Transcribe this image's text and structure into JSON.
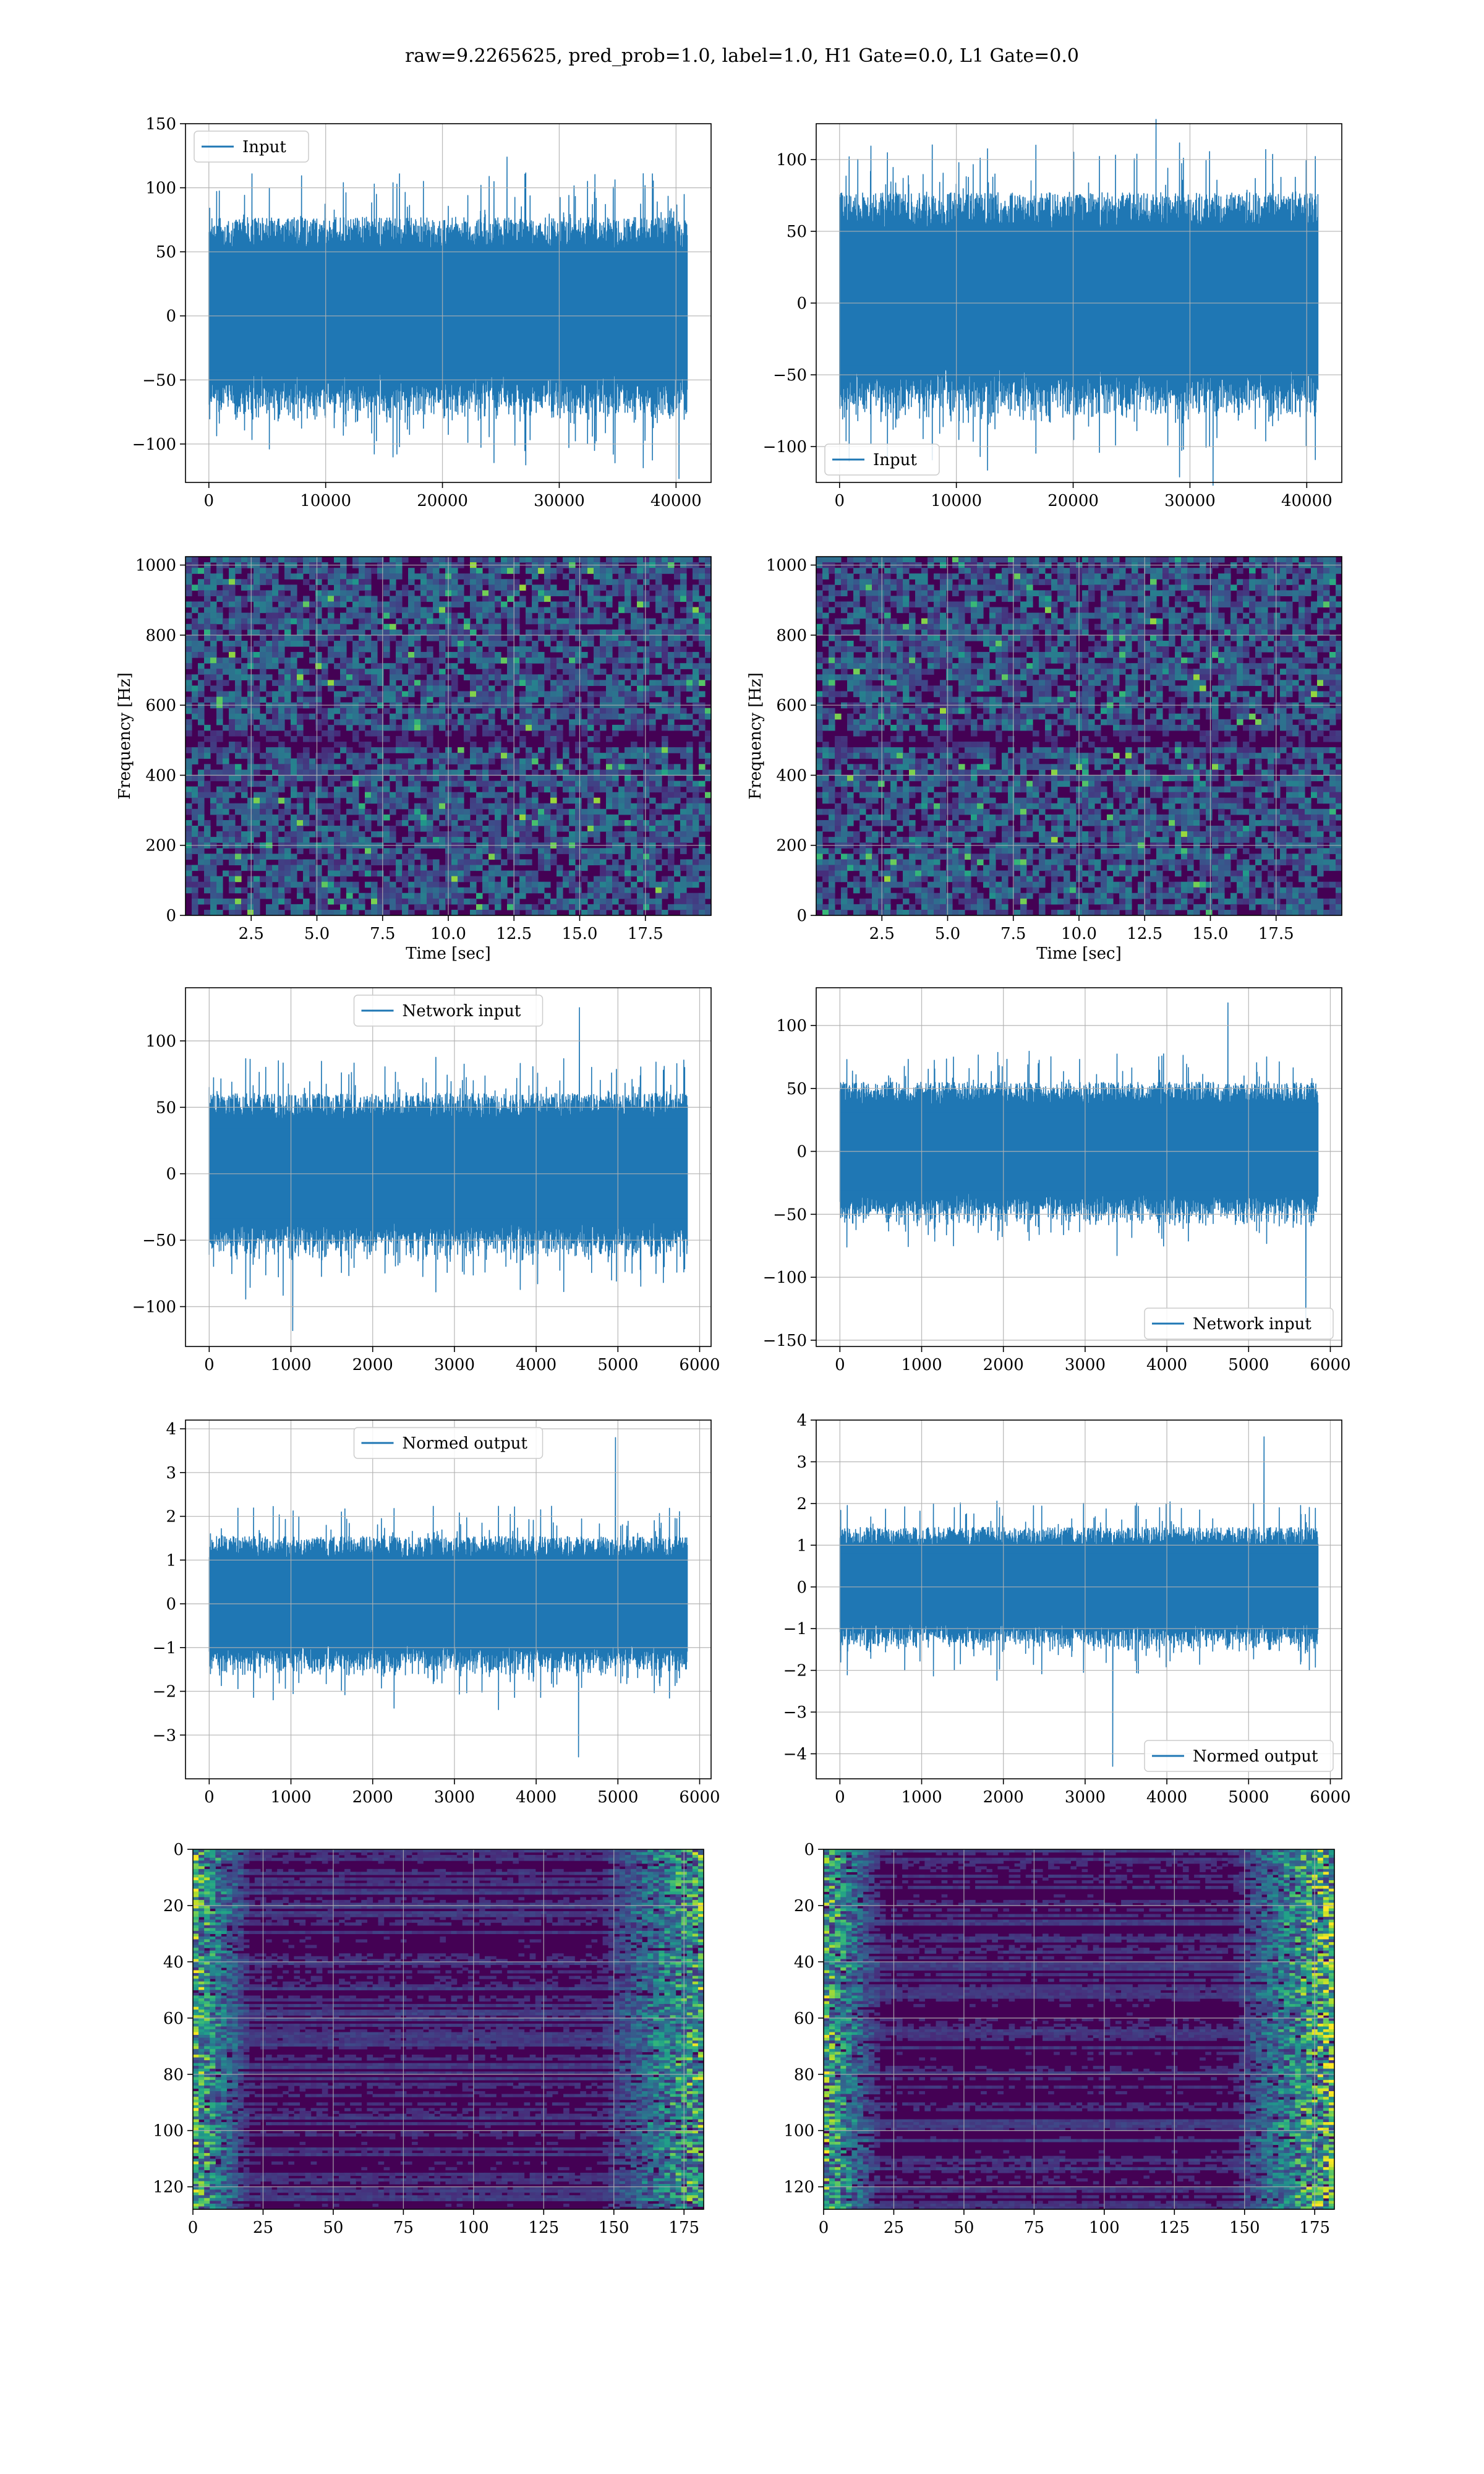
{
  "suptitle": "raw=9.2265625, pred_prob=1.0, label=1.0, H1 Gate=0.0, L1 Gate=0.0",
  "colors": {
    "line": "#1f77b4",
    "grid": "#b0b0b0",
    "viridis_dark": "#440154"
  },
  "chart_data": [
    {
      "id": "input_left",
      "type": "line",
      "row": 0,
      "col": 0,
      "series": [
        {
          "name": "Input",
          "n_points": 40960,
          "amplitude_typical": 70,
          "peak_max": 124,
          "peak_min": -127
        }
      ],
      "xlim": [
        -2000,
        43000
      ],
      "ylim": [
        -130,
        150
      ],
      "xticks": [
        0,
        10000,
        20000,
        30000,
        40000
      ],
      "xticklabels": [
        "0",
        "10000",
        "20000",
        "30000",
        "40000"
      ],
      "yticks": [
        -100,
        -50,
        0,
        50,
        100,
        150
      ],
      "yticklabels": [
        "−100",
        "−50",
        "0",
        "50",
        "100",
        "150"
      ],
      "legend": "upper-left",
      "grid": true,
      "xlabel": "",
      "ylabel": ""
    },
    {
      "id": "input_right",
      "type": "line",
      "row": 0,
      "col": 1,
      "series": [
        {
          "name": "Input",
          "n_points": 40960,
          "amplitude_typical": 70,
          "peak_max": 128,
          "peak_min": -127
        }
      ],
      "xlim": [
        -2000,
        43000
      ],
      "ylim": [
        -125,
        125
      ],
      "xticks": [
        0,
        10000,
        20000,
        30000,
        40000
      ],
      "xticklabels": [
        "0",
        "10000",
        "20000",
        "30000",
        "40000"
      ],
      "yticks": [
        -100,
        -50,
        0,
        50,
        100
      ],
      "yticklabels": [
        "−100",
        "−50",
        "0",
        "50",
        "100"
      ],
      "legend": "lower-left",
      "grid": true,
      "xlabel": "",
      "ylabel": ""
    },
    {
      "id": "spec_left",
      "type": "heatmap",
      "row": 1,
      "col": 0,
      "xlim": [
        0,
        20
      ],
      "ylim": [
        0,
        1024
      ],
      "xticks": [
        2.5,
        5,
        7.5,
        10,
        12.5,
        15,
        17.5
      ],
      "xticklabels": [
        "2.5",
        "5.0",
        "7.5",
        "10.0",
        "12.5",
        "15.0",
        "17.5"
      ],
      "yticks": [
        0,
        200,
        400,
        600,
        800,
        1000
      ],
      "yticklabels": [
        "0",
        "200",
        "400",
        "600",
        "800",
        "1000"
      ],
      "xlabel": "Time [sec]",
      "ylabel": "Frequency [Hz]",
      "colormap": "viridis",
      "grid": true
    },
    {
      "id": "spec_right",
      "type": "heatmap",
      "row": 1,
      "col": 1,
      "xlim": [
        0,
        20
      ],
      "ylim": [
        0,
        1024
      ],
      "xticks": [
        2.5,
        5,
        7.5,
        10,
        12.5,
        15,
        17.5
      ],
      "xticklabels": [
        "2.5",
        "5.0",
        "7.5",
        "10.0",
        "12.5",
        "15.0",
        "17.5"
      ],
      "yticks": [
        0,
        200,
        400,
        600,
        800,
        1000
      ],
      "yticklabels": [
        "0",
        "200",
        "400",
        "600",
        "800",
        "1000"
      ],
      "xlabel": "Time [sec]",
      "ylabel": "Frequency [Hz]",
      "colormap": "viridis",
      "grid": true
    },
    {
      "id": "net_left",
      "type": "line",
      "row": 2,
      "col": 0,
      "series": [
        {
          "name": "Network input",
          "n_points": 5850,
          "amplitude_typical": 55,
          "peak_max": 125,
          "peak_min": -118
        }
      ],
      "xlim": [
        -290,
        6140
      ],
      "ylim": [
        -130,
        140
      ],
      "xticks": [
        0,
        1000,
        2000,
        3000,
        4000,
        5000,
        6000
      ],
      "xticklabels": [
        "0",
        "1000",
        "2000",
        "3000",
        "4000",
        "5000",
        "6000"
      ],
      "yticks": [
        -100,
        -50,
        0,
        50,
        100
      ],
      "yticklabels": [
        "−100",
        "−50",
        "0",
        "50",
        "100"
      ],
      "legend": "upper-center",
      "grid": true,
      "xlabel": "",
      "ylabel": ""
    },
    {
      "id": "net_right",
      "type": "line",
      "row": 2,
      "col": 1,
      "series": [
        {
          "name": "Network input",
          "n_points": 5850,
          "amplitude_typical": 50,
          "peak_max": 118,
          "peak_min": -140
        }
      ],
      "xlim": [
        -290,
        6140
      ],
      "ylim": [
        -155,
        130
      ],
      "xticks": [
        0,
        1000,
        2000,
        3000,
        4000,
        5000,
        6000
      ],
      "xticklabels": [
        "0",
        "1000",
        "2000",
        "3000",
        "4000",
        "5000",
        "6000"
      ],
      "yticks": [
        -150,
        -100,
        -50,
        0,
        50,
        100
      ],
      "yticklabels": [
        "−150",
        "−100",
        "−50",
        "0",
        "50",
        "100"
      ],
      "legend": "lower-right",
      "grid": true,
      "xlabel": "",
      "ylabel": ""
    },
    {
      "id": "norm_left",
      "type": "line",
      "row": 3,
      "col": 0,
      "series": [
        {
          "name": "Normed output",
          "n_points": 5850,
          "amplitude_typical": 1.4,
          "peak_max": 3.8,
          "peak_min": -3.5
        }
      ],
      "xlim": [
        -290,
        6140
      ],
      "ylim": [
        -4,
        4.2
      ],
      "xticks": [
        0,
        1000,
        2000,
        3000,
        4000,
        5000,
        6000
      ],
      "xticklabels": [
        "0",
        "1000",
        "2000",
        "3000",
        "4000",
        "5000",
        "6000"
      ],
      "yticks": [
        -3,
        -2,
        -1,
        0,
        1,
        2,
        3,
        4
      ],
      "yticklabels": [
        "−3",
        "−2",
        "−1",
        "0",
        "1",
        "2",
        "3",
        "4"
      ],
      "legend": "upper-center",
      "grid": true,
      "xlabel": "",
      "ylabel": ""
    },
    {
      "id": "norm_right",
      "type": "line",
      "row": 3,
      "col": 1,
      "series": [
        {
          "name": "Normed output",
          "n_points": 5850,
          "amplitude_typical": 1.3,
          "peak_max": 3.6,
          "peak_min": -4.3
        }
      ],
      "xlim": [
        -290,
        6140
      ],
      "ylim": [
        -4.6,
        4
      ],
      "xticks": [
        0,
        1000,
        2000,
        3000,
        4000,
        5000,
        6000
      ],
      "xticklabels": [
        "0",
        "1000",
        "2000",
        "3000",
        "4000",
        "5000",
        "6000"
      ],
      "yticks": [
        -4,
        -3,
        -2,
        -1,
        0,
        1,
        2,
        3,
        4
      ],
      "yticklabels": [
        "−4",
        "−3",
        "−2",
        "−1",
        "0",
        "1",
        "2",
        "3",
        "4"
      ],
      "legend": "lower-right",
      "grid": true,
      "xlabel": "",
      "ylabel": ""
    },
    {
      "id": "feat_left",
      "type": "heatmap",
      "row": 4,
      "col": 0,
      "xlim": [
        0,
        182
      ],
      "ylim": [
        128,
        0
      ],
      "xticks": [
        0,
        25,
        50,
        75,
        100,
        125,
        150,
        175
      ],
      "xticklabels": [
        "0",
        "25",
        "50",
        "75",
        "100",
        "125",
        "150",
        "175"
      ],
      "yticks": [
        0,
        20,
        40,
        60,
        80,
        100,
        120
      ],
      "yticklabels": [
        "0",
        "20",
        "40",
        "60",
        "80",
        "100",
        "120"
      ],
      "xlabel": "",
      "ylabel": "",
      "colormap": "viridis",
      "grid": true
    },
    {
      "id": "feat_right",
      "type": "heatmap",
      "row": 4,
      "col": 1,
      "xlim": [
        0,
        182
      ],
      "ylim": [
        128,
        0
      ],
      "xticks": [
        0,
        25,
        50,
        75,
        100,
        125,
        150,
        175
      ],
      "xticklabels": [
        "0",
        "25",
        "50",
        "75",
        "100",
        "125",
        "150",
        "175"
      ],
      "yticks": [
        0,
        20,
        40,
        60,
        80,
        100,
        120
      ],
      "yticklabels": [
        "0",
        "20",
        "40",
        "60",
        "80",
        "100",
        "120"
      ],
      "xlabel": "",
      "ylabel": "",
      "colormap": "viridis",
      "grid": true
    }
  ]
}
